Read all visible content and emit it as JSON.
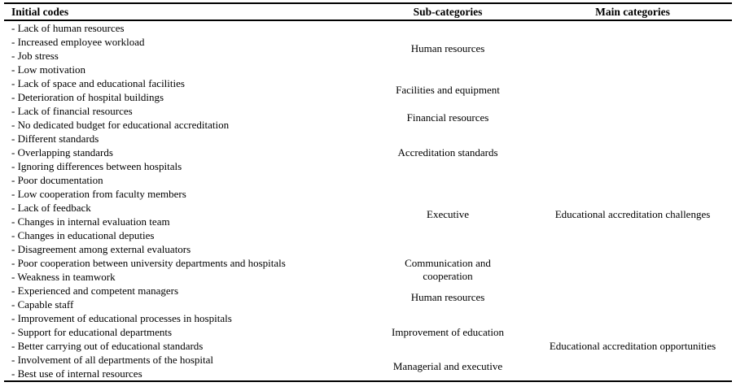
{
  "table": {
    "header": {
      "initial_codes": "Initial codes",
      "sub_categories": "Sub-categories",
      "main_categories": "Main categories"
    },
    "initial_codes": [
      "- Lack of human resources",
      "- Increased employee workload",
      "- Job stress",
      "- Low motivation",
      "- Lack of space and educational facilities",
      "- Deterioration of hospital buildings",
      "- Lack of financial resources",
      "- No dedicated budget for educational accreditation",
      "- Different standards",
      "- Overlapping standards",
      "- Ignoring differences between hospitals",
      "- Poor documentation",
      "- Low cooperation from faculty members",
      "- Lack of feedback",
      "- Changes in internal evaluation team",
      "- Changes in educational deputies",
      "- Disagreement among external evaluators",
      "- Poor cooperation between university departments and hospitals",
      "- Weakness in teamwork",
      "- Experienced and competent managers",
      "- Capable staff",
      "- Improvement of educational processes in hospitals",
      "- Support for educational departments",
      "- Better carrying out of educational standards",
      "- Involvement of all departments of the hospital",
      "- Best use of internal resources"
    ],
    "sub_categories": [
      {
        "label": "Human resources",
        "start": 1,
        "span": 4
      },
      {
        "label": "Facilities and equipment",
        "start": 5,
        "span": 2
      },
      {
        "label": "Financial resources",
        "start": 7,
        "span": 2
      },
      {
        "label": "Accreditation standards",
        "start": 9,
        "span": 3
      },
      {
        "label": "Executive",
        "start": 12,
        "span": 6
      },
      {
        "label": "Communication and cooperation",
        "start": 18,
        "span": 2
      },
      {
        "label": "Human resources",
        "start": 20,
        "span": 2
      },
      {
        "label": "Improvement of education",
        "start": 22,
        "span": 3
      },
      {
        "label": "Managerial and executive",
        "start": 25,
        "span": 2
      }
    ],
    "main_categories": [
      {
        "label": "Educational accreditation challenges",
        "start": 12,
        "span": 6
      },
      {
        "label": "Educational accreditation opportunities",
        "start": 22,
        "span": 5
      }
    ],
    "colors": {
      "text": "#000000",
      "background": "#ffffff",
      "border": "#000000"
    }
  }
}
